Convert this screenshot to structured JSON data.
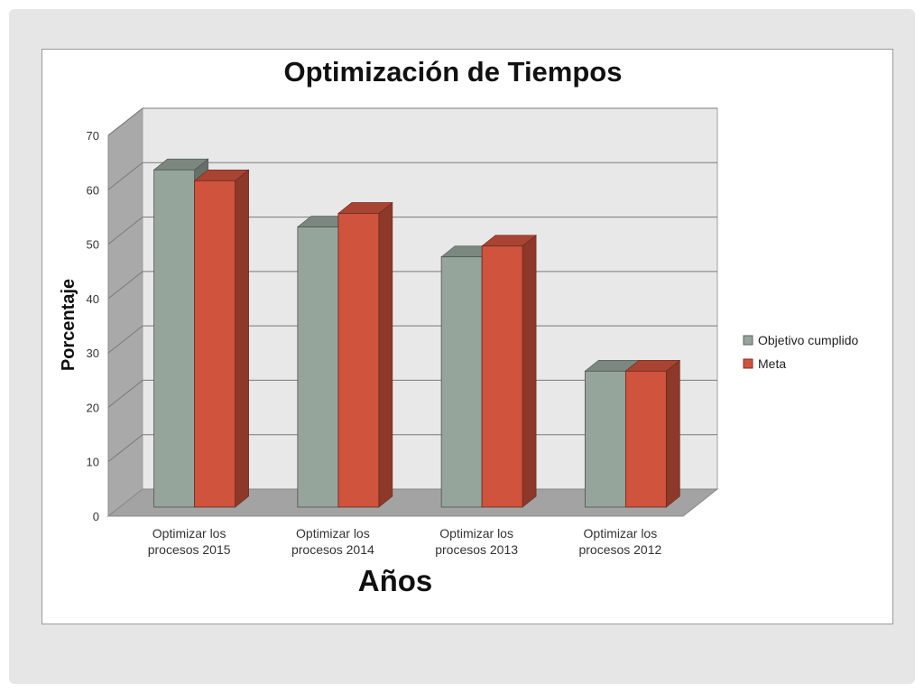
{
  "chart_data": {
    "type": "bar",
    "title": "Optimización de Tiempos",
    "xlabel": "Años",
    "ylabel": "Porcentaje",
    "categories": [
      [
        "Optimizar los",
        "procesos 2015"
      ],
      [
        "Optimizar los",
        "procesos  2014"
      ],
      [
        "Optimizar los",
        "procesos 2013"
      ],
      [
        "Optimizar los",
        "procesos 2012"
      ]
    ],
    "series": [
      {
        "name": "Objetivo cumplido",
        "values": [
          62,
          51.5,
          46,
          25
        ],
        "color": "#96a59b"
      },
      {
        "name": "Meta",
        "values": [
          60,
          54,
          48,
          25
        ],
        "color": "#cf533d"
      }
    ],
    "ylim": [
      0,
      70
    ],
    "yticks": [
      0,
      10,
      20,
      30,
      40,
      50,
      60,
      70
    ],
    "grid": true,
    "legend": "right",
    "style": "3d-clustered-column"
  }
}
